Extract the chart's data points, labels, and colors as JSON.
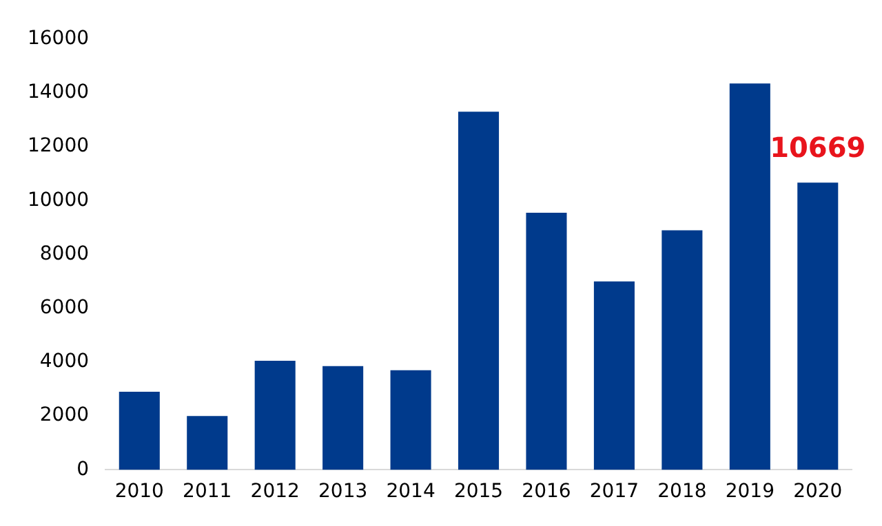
{
  "chart_data": {
    "type": "bar",
    "categories": [
      "2010",
      "2011",
      "2012",
      "2013",
      "2014",
      "2015",
      "2016",
      "2017",
      "2018",
      "2019",
      "2020"
    ],
    "values": [
      2900,
      2000,
      4050,
      3850,
      3700,
      13300,
      9550,
      7000,
      8900,
      14350,
      10669
    ],
    "value_labels": [
      null,
      null,
      null,
      null,
      null,
      null,
      null,
      null,
      null,
      null,
      "10669"
    ],
    "color": "#003a8c",
    "ylim": [
      0,
      16000
    ],
    "yticks": [
      0,
      2000,
      4000,
      6000,
      8000,
      10000,
      12000,
      14000,
      16000
    ],
    "grid": false,
    "legend": false
  }
}
